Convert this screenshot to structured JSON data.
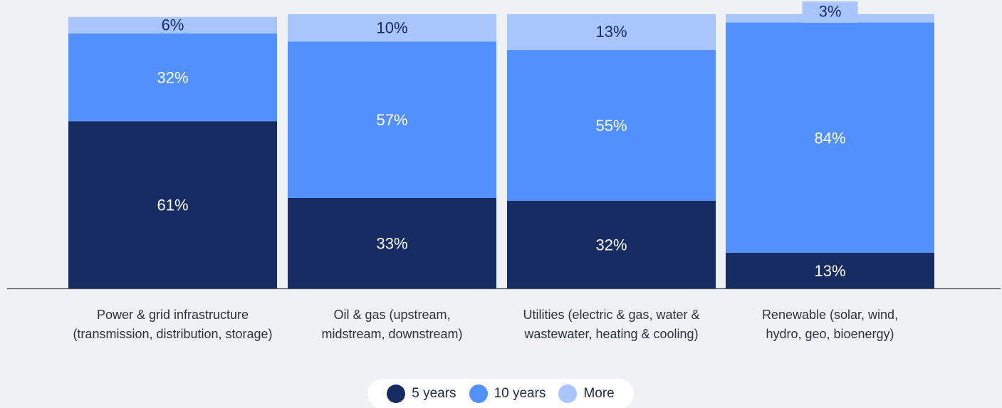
{
  "colors": {
    "background": "#eff1f5",
    "axis": "#4a4f5a",
    "label_text": "#2b3140",
    "series": [
      "#162c63",
      "#5291fb",
      "#a8c6fb"
    ],
    "segment_text_light": "#ffffff",
    "segment_text_dark": "#162c63"
  },
  "chart_data": {
    "type": "bar",
    "stacked": true,
    "ylim": [
      0,
      100
    ],
    "grid": false,
    "legend_position": "bottom-center",
    "categories": [
      [
        "Power & grid infrastructure",
        "(transmission, distribution, storage)"
      ],
      [
        "Oil & gas (upstream,",
        "midstream, downstream)"
      ],
      [
        "Utilities (electric & gas, water &",
        "wastewater, heating & cooling)"
      ],
      [
        "Renewable (solar, wind,",
        "hydro, geo, bioenergy)"
      ]
    ],
    "series": [
      {
        "name": "5 years",
        "values": [
          61,
          33,
          32,
          13
        ],
        "labels": [
          "61%",
          "33%",
          "32%",
          "13%"
        ]
      },
      {
        "name": "10 years",
        "values": [
          32,
          57,
          55,
          84
        ],
        "labels": [
          "32%",
          "57%",
          "55%",
          "84%"
        ]
      },
      {
        "name": "More",
        "values": [
          6,
          10,
          13,
          3
        ],
        "labels": [
          "6%",
          "10%",
          "13%",
          "3%"
        ]
      }
    ]
  }
}
